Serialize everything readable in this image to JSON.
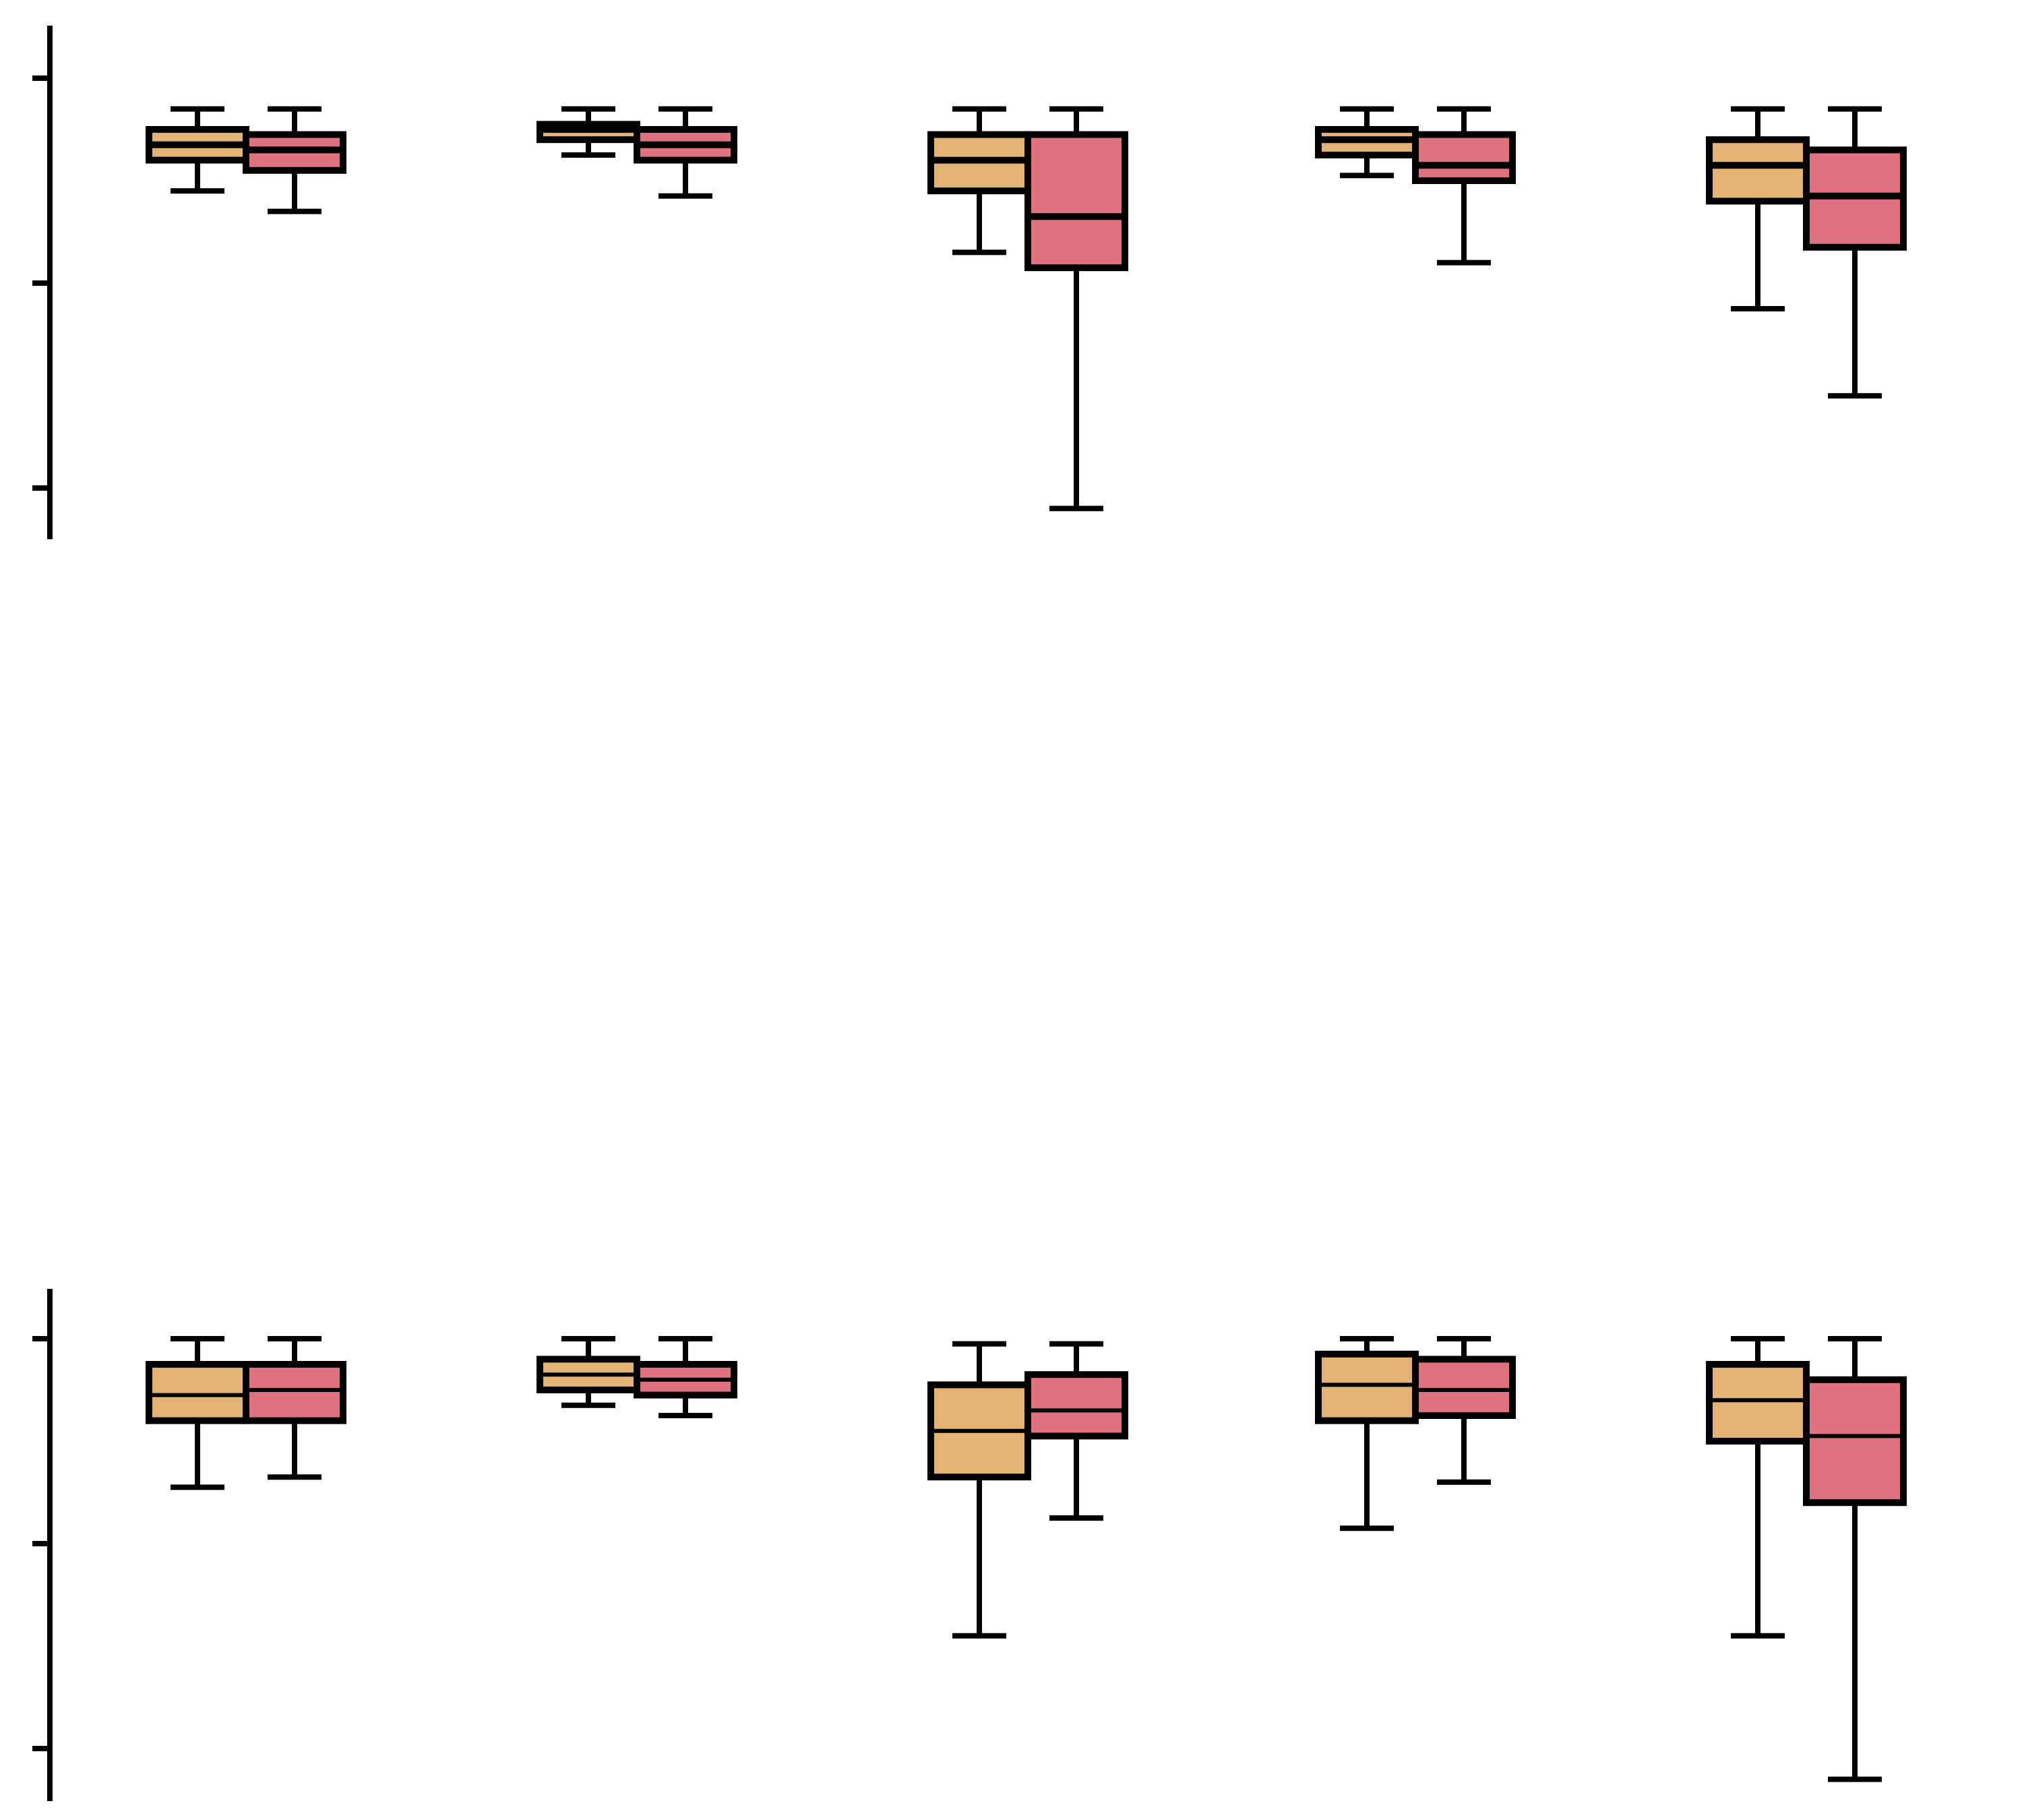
{
  "chart_data": [
    {
      "type": "box",
      "title": "",
      "xlabel": "",
      "ylabel": "",
      "ylim": [
        0,
        1
      ],
      "grid": false,
      "legend": "none",
      "yticks": [
        0.1,
        0.5,
        0.9
      ],
      "colors": {
        "series_a": "#e3b374",
        "series_b": "#e0717f",
        "stroke": "#000000"
      },
      "groups": [
        {
          "boxes": [
            {
              "series": "a",
              "whislo": 0.68,
              "q1": 0.74,
              "med": 0.77,
              "q3": 0.8,
              "whishi": 0.84
            },
            {
              "series": "b",
              "whislo": 0.64,
              "q1": 0.72,
              "med": 0.76,
              "q3": 0.79,
              "whishi": 0.84
            }
          ]
        },
        {
          "boxes": [
            {
              "series": "a",
              "whislo": 0.75,
              "q1": 0.78,
              "med": 0.8,
              "q3": 0.81,
              "whishi": 0.84
            },
            {
              "series": "b",
              "whislo": 0.67,
              "q1": 0.74,
              "med": 0.77,
              "q3": 0.8,
              "whishi": 0.84
            }
          ]
        },
        {
          "boxes": [
            {
              "series": "a",
              "whislo": 0.56,
              "q1": 0.68,
              "med": 0.74,
              "q3": 0.79,
              "whishi": 0.84
            },
            {
              "series": "b",
              "whislo": 0.06,
              "q1": 0.53,
              "med": 0.63,
              "q3": 0.79,
              "whishi": 0.84
            }
          ]
        },
        {
          "boxes": [
            {
              "series": "a",
              "whislo": 0.71,
              "q1": 0.75,
              "med": 0.78,
              "q3": 0.8,
              "whishi": 0.84
            },
            {
              "series": "b",
              "whislo": 0.54,
              "q1": 0.7,
              "med": 0.73,
              "q3": 0.79,
              "whishi": 0.84
            }
          ]
        },
        {
          "boxes": [
            {
              "series": "a",
              "whislo": 0.45,
              "q1": 0.66,
              "med": 0.73,
              "q3": 0.78,
              "whishi": 0.84
            },
            {
              "series": "b",
              "whislo": 0.28,
              "q1": 0.57,
              "med": 0.67,
              "q3": 0.76,
              "whishi": 0.84
            }
          ]
        }
      ]
    },
    {
      "type": "box",
      "title": "",
      "xlabel": "",
      "ylabel": "",
      "ylim": [
        0,
        1
      ],
      "grid": false,
      "legend": "none",
      "yticks": [
        0.1,
        0.5,
        0.9
      ],
      "colors": {
        "series_a": "#e3b374",
        "series_b": "#e0717f",
        "stroke": "#000000"
      },
      "groups": [
        {
          "boxes": [
            {
              "series": "a",
              "whislo": 0.61,
              "q1": 0.74,
              "med": 0.79,
              "q3": 0.85,
              "whishi": 0.9
            },
            {
              "series": "b",
              "whislo": 0.63,
              "q1": 0.74,
              "med": 0.8,
              "q3": 0.85,
              "whishi": 0.9
            }
          ]
        },
        {
          "boxes": [
            {
              "series": "a",
              "whislo": 0.77,
              "q1": 0.8,
              "med": 0.83,
              "q3": 0.86,
              "whishi": 0.9
            },
            {
              "series": "b",
              "whislo": 0.75,
              "q1": 0.79,
              "med": 0.82,
              "q3": 0.85,
              "whishi": 0.9
            }
          ]
        },
        {
          "boxes": [
            {
              "series": "a",
              "whislo": 0.32,
              "q1": 0.63,
              "med": 0.72,
              "q3": 0.81,
              "whishi": 0.89
            },
            {
              "series": "b",
              "whislo": 0.55,
              "q1": 0.71,
              "med": 0.76,
              "q3": 0.83,
              "whishi": 0.89
            }
          ]
        },
        {
          "boxes": [
            {
              "series": "a",
              "whislo": 0.53,
              "q1": 0.74,
              "med": 0.81,
              "q3": 0.87,
              "whishi": 0.9
            },
            {
              "series": "b",
              "whislo": 0.62,
              "q1": 0.75,
              "med": 0.8,
              "q3": 0.86,
              "whishi": 0.9
            }
          ]
        },
        {
          "boxes": [
            {
              "series": "a",
              "whislo": 0.32,
              "q1": 0.7,
              "med": 0.78,
              "q3": 0.85,
              "whishi": 0.9
            },
            {
              "series": "b",
              "whislo": 0.04,
              "q1": 0.58,
              "med": 0.71,
              "q3": 0.82,
              "whishi": 0.9
            }
          ]
        }
      ]
    }
  ]
}
